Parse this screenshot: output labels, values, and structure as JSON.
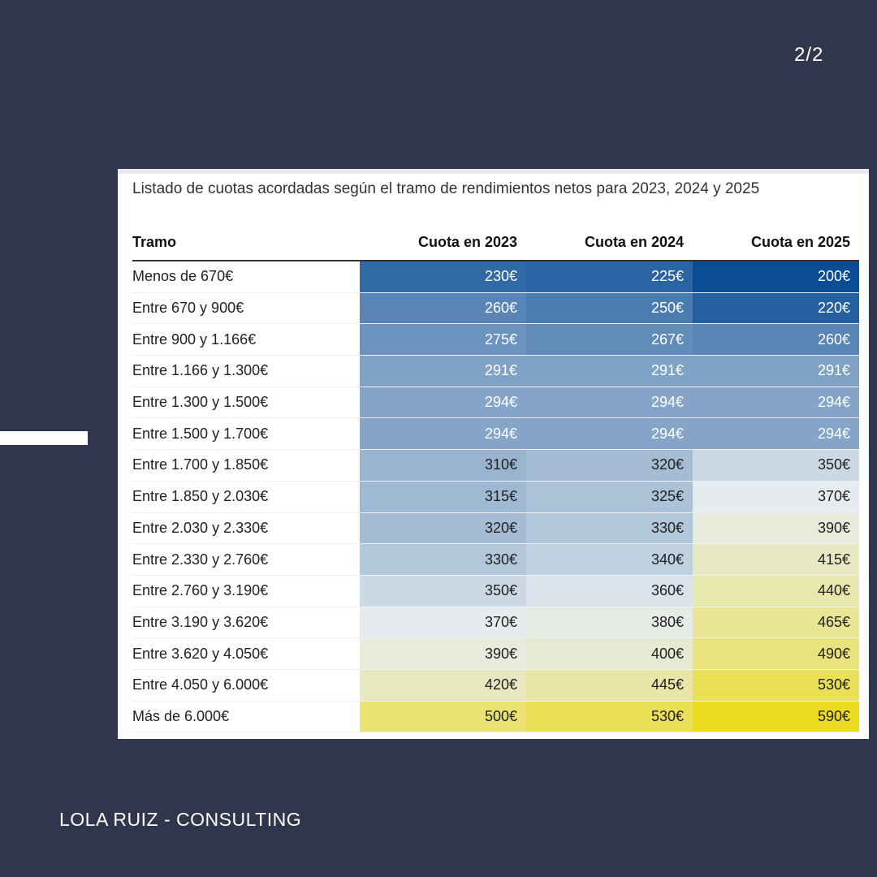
{
  "page_indicator": "2/2",
  "footer": {
    "brand": "LOLA RUIZ - CONSULTING"
  },
  "table": {
    "subtitle": "Listado de cuotas acordadas según el tramo de rendimientos netos para 2023, 2024 y 2025",
    "headers": [
      "Tramo",
      "Cuota en 2023",
      "Cuota en 2024",
      "Cuota en 2025"
    ],
    "rows": [
      {
        "tramo": "Menos de 670€",
        "c2023": "230€",
        "c2024": "225€",
        "c2025": "200€"
      },
      {
        "tramo": "Entre 670 y 900€",
        "c2023": "260€",
        "c2024": "250€",
        "c2025": "220€"
      },
      {
        "tramo": "Entre 900 y 1.166€",
        "c2023": "275€",
        "c2024": "267€",
        "c2025": "260€"
      },
      {
        "tramo": "Entre 1.166 y 1.300€",
        "c2023": "291€",
        "c2024": "291€",
        "c2025": "291€"
      },
      {
        "tramo": "Entre 1.300 y 1.500€",
        "c2023": "294€",
        "c2024": "294€",
        "c2025": "294€"
      },
      {
        "tramo": "Entre 1.500 y 1.700€",
        "c2023": "294€",
        "c2024": "294€",
        "c2025": "294€"
      },
      {
        "tramo": "Entre 1.700 y 1.850€",
        "c2023": "310€",
        "c2024": "320€",
        "c2025": "350€"
      },
      {
        "tramo": "Entre 1.850 y 2.030€",
        "c2023": "315€",
        "c2024": "325€",
        "c2025": "370€"
      },
      {
        "tramo": "Entre 2.030 y 2.330€",
        "c2023": "320€",
        "c2024": "330€",
        "c2025": "390€"
      },
      {
        "tramo": "Entre 2.330 y 2.760€",
        "c2023": "330€",
        "c2024": "340€",
        "c2025": "415€"
      },
      {
        "tramo": "Entre 2.760 y 3.190€",
        "c2023": "350€",
        "c2024": "360€",
        "c2025": "440€"
      },
      {
        "tramo": "Entre 3.190 y 3.620€",
        "c2023": "370€",
        "c2024": "380€",
        "c2025": "465€"
      },
      {
        "tramo": "Entre 3.620 y 4.050€",
        "c2023": "390€",
        "c2024": "400€",
        "c2025": "490€"
      },
      {
        "tramo": "Entre 4.050 y 6.000€",
        "c2023": "420€",
        "c2024": "445€",
        "c2025": "530€"
      },
      {
        "tramo": "Más de 6.000€",
        "c2023": "500€",
        "c2024": "530€",
        "c2025": "590€"
      }
    ]
  },
  "colors": {
    "background": "#30364b",
    "card": "#ffffff",
    "heat_low": "#0a4d96",
    "heat_mid": "#e6ecee",
    "heat_high": "#ecdc1e",
    "text_on_dark": "#ffffff",
    "text_on_light": "#222222"
  }
}
